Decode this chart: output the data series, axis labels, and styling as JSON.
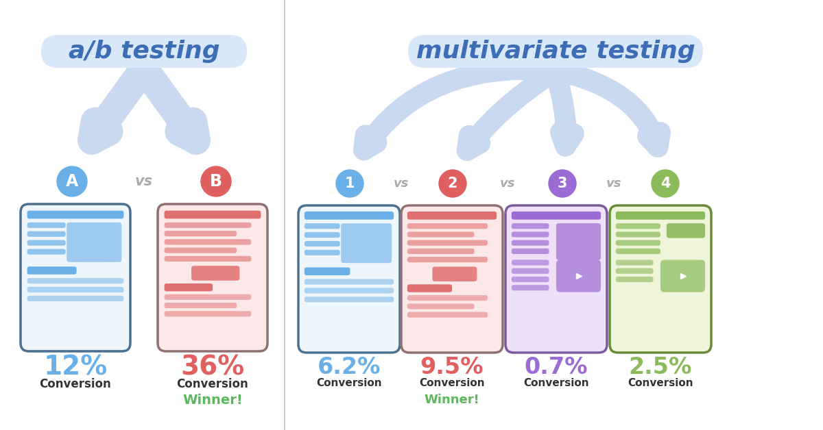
{
  "bg_color": "#ffffff",
  "divider_color": "#cccccc",
  "arrow_color": "#c8d9f0",
  "ab_title": "a/b testing",
  "mv_title": "multivariate testing",
  "title_bg": "#d8e8f8",
  "title_text_color": "#3d6db5",
  "ab_variants": [
    {
      "label": "A",
      "circle_color": "#6ab0e8",
      "pct": "12%",
      "pct_color": "#6ab0e8",
      "conversion": "Conversion",
      "winner": false,
      "card_bg": "#eef5fb",
      "card_border": "#4a6f8f",
      "accent": "#6ab0e8",
      "accent2": "#90c8f0"
    },
    {
      "label": "B",
      "circle_color": "#e06060",
      "pct": "36%",
      "pct_color": "#e06060",
      "conversion": "Conversion",
      "winner": true,
      "card_bg": "#fce8e8",
      "card_border": "#907070",
      "accent": "#e07070",
      "accent2": "#f0a0a0"
    }
  ],
  "mv_variants": [
    {
      "label": "1",
      "circle_color": "#6ab0e8",
      "pct": "6.2%",
      "pct_color": "#6ab0e8",
      "conversion": "Conversion",
      "winner": false,
      "card_bg": "#eef5fb",
      "card_border": "#4a6f8f",
      "accent": "#6ab0e8",
      "accent2": "#90c8f0"
    },
    {
      "label": "2",
      "circle_color": "#e06060",
      "pct": "9.5%",
      "pct_color": "#e06060",
      "conversion": "Conversion",
      "winner": true,
      "card_bg": "#fce8e8",
      "card_border": "#907070",
      "accent": "#e07070",
      "accent2": "#f0a0a0"
    },
    {
      "label": "3",
      "circle_color": "#9b6dd4",
      "pct": "0.7%",
      "pct_color": "#9b6dd4",
      "conversion": "Conversion",
      "winner": false,
      "card_bg": "#ede0f8",
      "card_border": "#7a5a9a",
      "accent": "#9b6dd4",
      "accent2": "#c0a0e8"
    },
    {
      "label": "4",
      "circle_color": "#8aba5a",
      "pct": "2.5%",
      "pct_color": "#8aba5a",
      "conversion": "Conversion",
      "winner": false,
      "card_bg": "#eef5d8",
      "card_border": "#6a8a3a",
      "accent": "#8aba5a",
      "accent2": "#b0d880"
    }
  ],
  "winner_color": "#5cb85c",
  "winner_text": "Winner!",
  "vs_color": "#aaaaaa"
}
